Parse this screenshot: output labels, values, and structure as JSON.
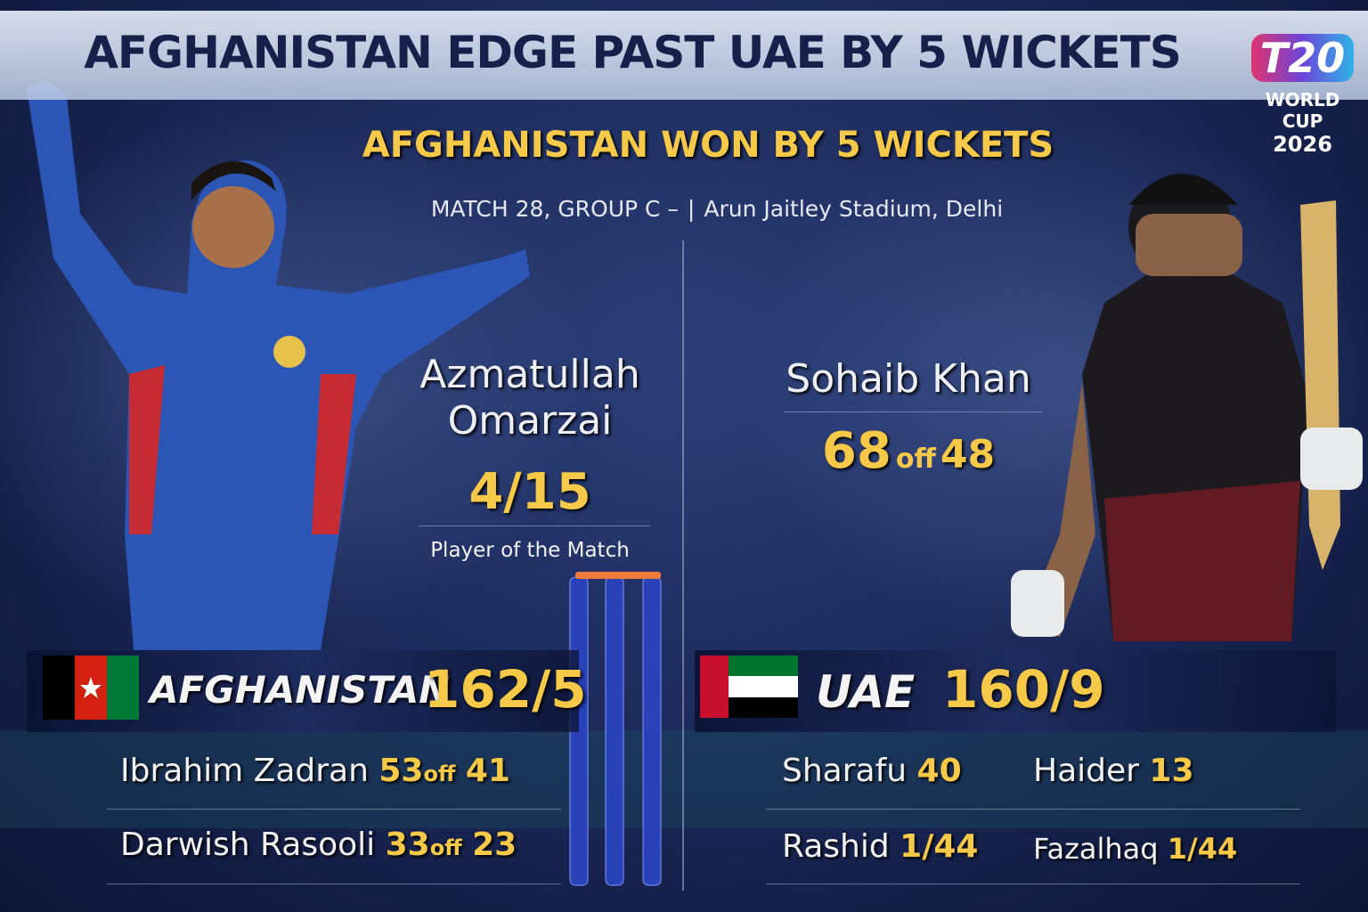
{
  "header": {
    "title": "AFGHANISTAN EDGE PAST UAE BY 5 WICKETS",
    "logo": {
      "mark": "T20",
      "line1": "WORLD CUP",
      "line2": "2026"
    }
  },
  "result": "AFGHANISTAN WON BY 5 WICKETS",
  "match_info": {
    "match": "MATCH 28, GROUP C –",
    "venue": "Arun Jaitley Stadium, Delhi"
  },
  "featured": [
    {
      "name": "Azmatullah Omarzai",
      "figures": "4/15",
      "award": "Player of the Match"
    },
    {
      "name": "Sohaib Khan",
      "runs": "68",
      "connector": "off",
      "balls": "48"
    }
  ],
  "teams": [
    {
      "name": "AFGHANISTAN",
      "score": "162/5",
      "performers": [
        {
          "name": "Ibrahim Zadran",
          "runs": "53",
          "connector": "off",
          "balls": "41"
        },
        {
          "name": "Darwish Rasooli",
          "runs": "33",
          "connector": "off",
          "balls": "23"
        }
      ]
    },
    {
      "name": "UAE",
      "score": "160/9",
      "performers": [
        {
          "name": "Sharafu",
          "figure": "40"
        },
        {
          "name": "Haider",
          "figure": "13"
        },
        {
          "name": "Rashid",
          "figure": "1/44"
        },
        {
          "name": "Fazalhaq",
          "figure": "1/44"
        }
      ]
    }
  ]
}
